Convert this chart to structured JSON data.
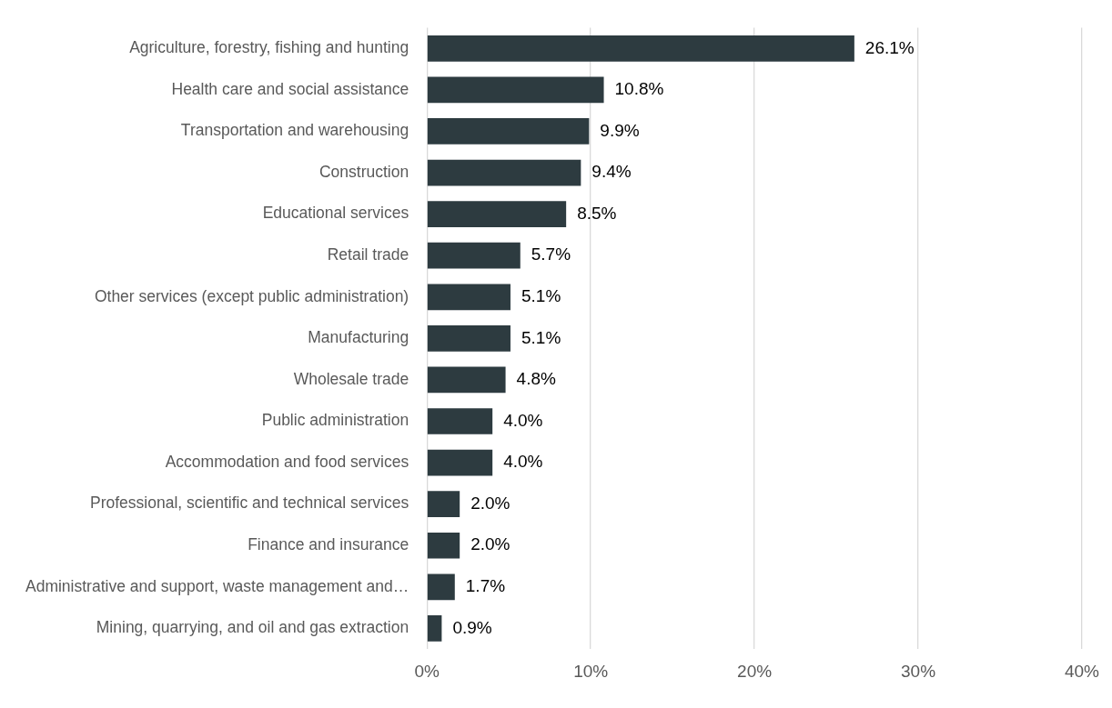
{
  "chart_data": {
    "type": "bar",
    "orientation": "horizontal",
    "categories": [
      "Agriculture, forestry, fishing and hunting",
      "Health care and social assistance",
      "Transportation and warehousing",
      "Construction",
      "Educational services",
      "Retail trade",
      "Other services (except public administration)",
      "Manufacturing",
      "Wholesale trade",
      "Public administration",
      "Accommodation and food services",
      "Professional, scientific and technical services",
      "Finance and insurance",
      "Administrative and support, waste management and…",
      "Mining, quarrying, and oil and gas extraction"
    ],
    "values": [
      26.1,
      10.8,
      9.9,
      9.4,
      8.5,
      5.7,
      5.1,
      5.1,
      4.8,
      4.0,
      4.0,
      2.0,
      2.0,
      1.7,
      0.9
    ],
    "value_labels": [
      "26.1%",
      "10.8%",
      "9.9%",
      "9.4%",
      "8.5%",
      "5.7%",
      "5.1%",
      "5.1%",
      "4.8%",
      "4.0%",
      "4.0%",
      "2.0%",
      "2.0%",
      "1.7%",
      "0.9%"
    ],
    "color": "#2d3b40",
    "xlim": [
      0,
      40
    ],
    "xticks": [
      {
        "value": 0,
        "label": "0%"
      },
      {
        "value": 10,
        "label": "10%"
      },
      {
        "value": 20,
        "label": "20%"
      },
      {
        "value": 30,
        "label": "30%"
      },
      {
        "value": 40,
        "label": "40%"
      }
    ],
    "grid": "x"
  }
}
